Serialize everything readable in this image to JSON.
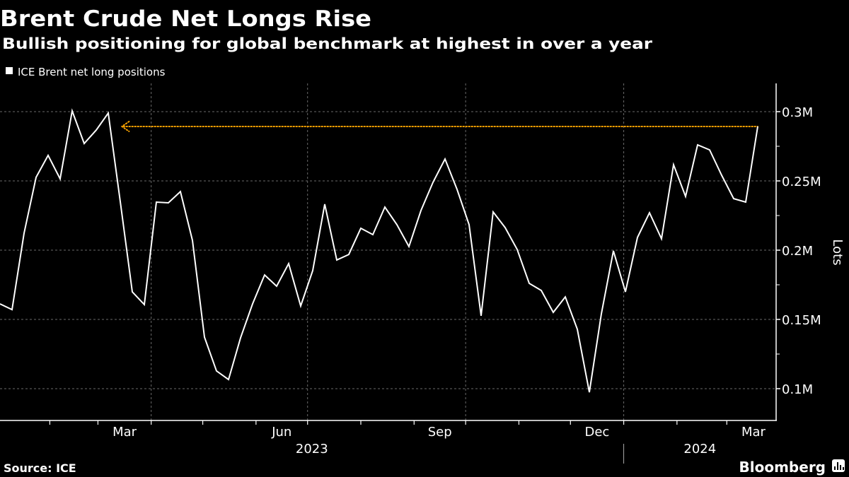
{
  "chart_data": {
    "type": "line",
    "title": "Brent Crude Net Longs Rise",
    "subtitle": "Bullish positioning for global benchmark at highest in over a year",
    "legend": [
      {
        "label": "ICE Brent net long positions",
        "color": "#ffffff"
      }
    ],
    "legend_placement": "top-left",
    "ylabel": "Lots",
    "xlabel": "",
    "ylim": [
      75000,
      320000
    ],
    "y_ticks": [
      {
        "value": 100000,
        "label": "0.1M"
      },
      {
        "value": 150000,
        "label": "0.15M"
      },
      {
        "value": 200000,
        "label": "0.2M"
      },
      {
        "value": 250000,
        "label": "0.25M"
      },
      {
        "value": 300000,
        "label": "0.3M"
      }
    ],
    "xlim": [
      "2023-01-03",
      "2024-04-01"
    ],
    "x_month_labels": [
      {
        "month": "2023-03",
        "label": "Mar"
      },
      {
        "month": "2023-06",
        "label": "Jun"
      },
      {
        "month": "2023-09",
        "label": "Sep"
      },
      {
        "month": "2023-12",
        "label": "Dec"
      },
      {
        "month": "2024-03",
        "label": "Mar"
      }
    ],
    "x_year_labels": [
      {
        "year": "2023",
        "label": "2023"
      },
      {
        "year": "2024",
        "label": "2024"
      }
    ],
    "grid": true,
    "series": [
      {
        "name": "ICE Brent net long positions",
        "color": "#ffffff",
        "x": [
          "2023-01-03",
          "2023-01-10",
          "2023-01-17",
          "2023-01-24",
          "2023-01-31",
          "2023-02-07",
          "2023-02-14",
          "2023-02-21",
          "2023-02-28",
          "2023-03-07",
          "2023-03-14",
          "2023-03-21",
          "2023-03-28",
          "2023-04-04",
          "2023-04-11",
          "2023-04-18",
          "2023-04-25",
          "2023-05-02",
          "2023-05-09",
          "2023-05-16",
          "2023-05-23",
          "2023-05-30",
          "2023-06-06",
          "2023-06-13",
          "2023-06-20",
          "2023-06-27",
          "2023-07-04",
          "2023-07-11",
          "2023-07-18",
          "2023-07-25",
          "2023-08-01",
          "2023-08-08",
          "2023-08-15",
          "2023-08-22",
          "2023-08-29",
          "2023-09-05",
          "2023-09-12",
          "2023-09-19",
          "2023-09-26",
          "2023-10-03",
          "2023-10-10",
          "2023-10-17",
          "2023-10-24",
          "2023-10-31",
          "2023-11-07",
          "2023-11-14",
          "2023-11-21",
          "2023-11-28",
          "2023-12-05",
          "2023-12-12",
          "2023-12-19",
          "2023-12-26",
          "2024-01-02",
          "2024-01-09",
          "2024-01-16",
          "2024-01-23",
          "2024-01-30",
          "2024-02-06",
          "2024-02-13",
          "2024-02-20",
          "2024-02-27",
          "2024-03-05",
          "2024-03-12",
          "2024-03-19"
        ],
        "values": [
          161200,
          157100,
          212200,
          252600,
          268400,
          251500,
          300500,
          277000,
          286700,
          299000,
          235000,
          169900,
          160700,
          234700,
          234200,
          242300,
          207100,
          137200,
          112800,
          106600,
          136700,
          161200,
          182100,
          174000,
          190300,
          159700,
          185200,
          233200,
          192900,
          196900,
          215800,
          211200,
          231100,
          218400,
          202600,
          228600,
          249000,
          265800,
          243900,
          218400,
          152600,
          227600,
          216300,
          200500,
          176000,
          170900,
          155100,
          166300,
          142900,
          97400,
          154100,
          199500,
          169900,
          209200,
          227000,
          208200,
          261700,
          238800,
          276000,
          272400,
          254100,
          237200,
          234700,
          289300
        ]
      }
    ],
    "annotations": [
      {
        "type": "reference-line",
        "style": "dotted-arrow-left",
        "color": "#f5a000",
        "value": 289300,
        "from": "2023-03-15",
        "to": "2024-03-19"
      }
    ]
  },
  "footer": {
    "source": "Source: ICE",
    "brand": "Bloomberg"
  }
}
